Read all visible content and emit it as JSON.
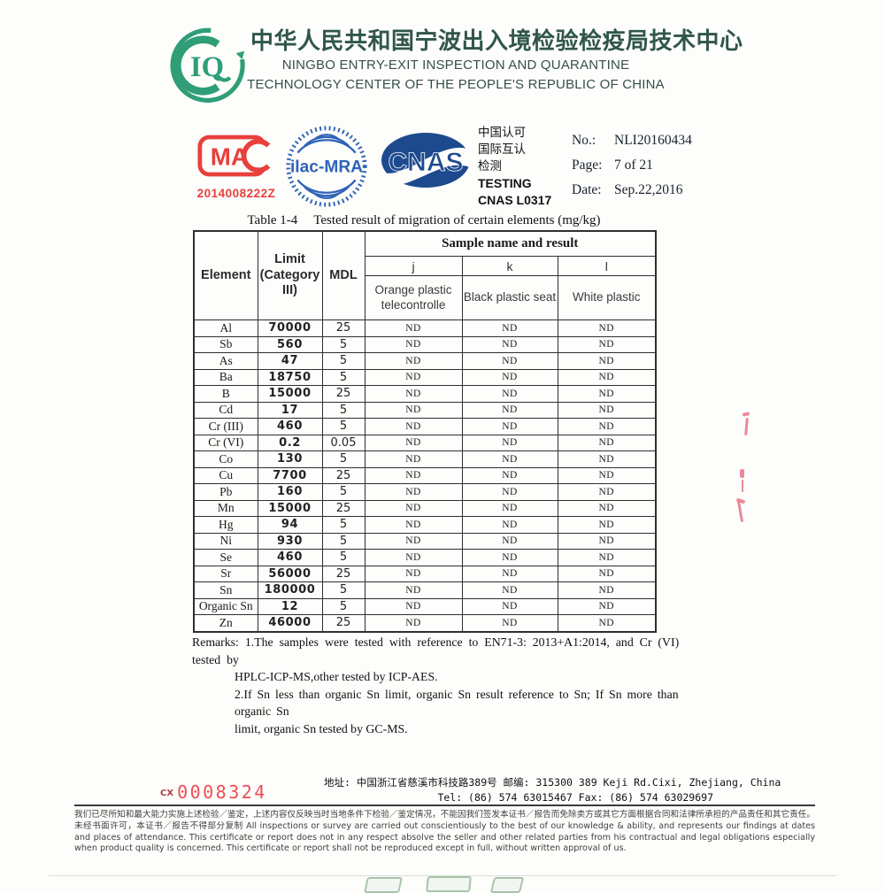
{
  "colors": {
    "brand_green": "#2f9e77",
    "title_green": "#30564a",
    "cma_red": "#e8403c",
    "serial_red": "#ee4d52",
    "ilac_blue": "#2f63b8",
    "cnas_navy": "#1d4a8e"
  },
  "header": {
    "logo_text": "IQ",
    "org_cn": "中华人民共和国宁波出入境检验检疫局技术中心",
    "org_en_line1": "NINGBO ENTRY-EXIT INSPECTION AND QUARANTINE",
    "org_en_line2": "TECHNOLOGY CENTER OF THE PEOPLE'S REPUBLIC OF CHINA"
  },
  "certs": {
    "cma_label": "MA",
    "cma_number": "2014008222Z",
    "ilac_label": "ilac-MRA",
    "cnas_label": "CNAS",
    "accreditation_lines": [
      "中国认可",
      "国际互认",
      "检测",
      "TESTING",
      "CNAS L0317"
    ]
  },
  "report_info": {
    "no_label": "No.:",
    "no_value": "NLI20160434",
    "page_label": "Page:",
    "page_value": "7 of 21",
    "date_label": "Date:",
    "date_value": "Sep.22,2016"
  },
  "table": {
    "caption_prefix": "Table 1-4",
    "caption_text": "Tested result of migration of certain elements (mg/kg)",
    "columns": {
      "element": "Element",
      "limit_lines": [
        "Limit",
        "(Category",
        "III)"
      ],
      "mdl": "MDL",
      "sample_header": "Sample name and result"
    },
    "samples": [
      {
        "key": "j",
        "name": "Orange plastic telecontrolle"
      },
      {
        "key": "k",
        "name": "Black plastic seat"
      },
      {
        "key": "l",
        "name": "White plastic"
      }
    ],
    "rows": [
      {
        "element": "Al",
        "limit": "70000",
        "mdl": "25",
        "j": "ND",
        "k": "ND",
        "l": "ND"
      },
      {
        "element": "Sb",
        "limit": "560",
        "mdl": "5",
        "j": "ND",
        "k": "ND",
        "l": "ND"
      },
      {
        "element": "As",
        "limit": "47",
        "mdl": "5",
        "j": "ND",
        "k": "ND",
        "l": "ND"
      },
      {
        "element": "Ba",
        "limit": "18750",
        "mdl": "5",
        "j": "ND",
        "k": "ND",
        "l": "ND"
      },
      {
        "element": "B",
        "limit": "15000",
        "mdl": "25",
        "j": "ND",
        "k": "ND",
        "l": "ND"
      },
      {
        "element": "Cd",
        "limit": "17",
        "mdl": "5",
        "j": "ND",
        "k": "ND",
        "l": "ND"
      },
      {
        "element": "Cr (III)",
        "limit": "460",
        "mdl": "5",
        "j": "ND",
        "k": "ND",
        "l": "ND"
      },
      {
        "element": "Cr (VI)",
        "limit": "0.2",
        "mdl": "0.05",
        "j": "ND",
        "k": "ND",
        "l": "ND"
      },
      {
        "element": "Co",
        "limit": "130",
        "mdl": "5",
        "j": "ND",
        "k": "ND",
        "l": "ND"
      },
      {
        "element": "Cu",
        "limit": "7700",
        "mdl": "25",
        "j": "ND",
        "k": "ND",
        "l": "ND"
      },
      {
        "element": "Pb",
        "limit": "160",
        "mdl": "5",
        "j": "ND",
        "k": "ND",
        "l": "ND"
      },
      {
        "element": "Mn",
        "limit": "15000",
        "mdl": "25",
        "j": "ND",
        "k": "ND",
        "l": "ND"
      },
      {
        "element": "Hg",
        "limit": "94",
        "mdl": "5",
        "j": "ND",
        "k": "ND",
        "l": "ND"
      },
      {
        "element": "Ni",
        "limit": "930",
        "mdl": "5",
        "j": "ND",
        "k": "ND",
        "l": "ND"
      },
      {
        "element": "Se",
        "limit": "460",
        "mdl": "5",
        "j": "ND",
        "k": "ND",
        "l": "ND"
      },
      {
        "element": "Sr",
        "limit": "56000",
        "mdl": "25",
        "j": "ND",
        "k": "ND",
        "l": "ND"
      },
      {
        "element": "Sn",
        "limit": "180000",
        "mdl": "5",
        "j": "ND",
        "k": "ND",
        "l": "ND"
      },
      {
        "element": "Organic Sn",
        "limit": "12",
        "mdl": "5",
        "j": "ND",
        "k": "ND",
        "l": "ND"
      },
      {
        "element": "Zn",
        "limit": "46000",
        "mdl": "25",
        "j": "ND",
        "k": "ND",
        "l": "ND"
      }
    ]
  },
  "remarks": {
    "label": "Remarks:",
    "lines": [
      "1.The samples were tested with reference to EN71-3: 2013+A1:2014, and Cr (VI) tested by",
      "HPLC-ICP-MS,other tested by ICP-AES.",
      "2.If Sn less than organic Sn  limit, organic Sn result reference to Sn; If Sn more than organic Sn",
      "limit, organic Sn tested by GC-MS."
    ]
  },
  "footer": {
    "serial_prefix": "CX",
    "serial_number": "0008324",
    "address_line": "地址: 中国浙江省慈溪市科技路389号  邮编: 315300   389 Keji Rd.Cixi, Zhejiang, China",
    "tel_fax_line": "Tel:  (86) 574 63015467     Fax:  (86) 574 63029697",
    "disclaimer_cn": "我们已尽所知和最大能力实施上述检验／鉴定，上述内容仅反映当时当地条件下检验／鉴定情况，不能因我们签发本证书／报告而免除卖方或其它方面根据合同和法律所承担的产品责任和其它责任。未经书面许可，本证书／报告不得部分复制",
    "disclaimer_en": "All inspections or survey are carried out conscientiously to the best of our knowledge & ability, and represents our findings at dates and places of attendance. This certificate or report does not in any respect absolve the seller and other related parties from his contractual and legal obligations especially when product quality is concerned. This certificate or report shall not be reproduced except in full, without written approval of us."
  }
}
